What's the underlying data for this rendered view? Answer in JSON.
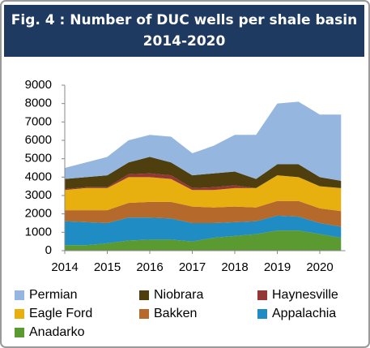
{
  "chart_data": {
    "type": "area",
    "stacked": true,
    "title": "Fig. 4 : Number of DUC wells per shale basin 2014-2020",
    "x": [
      2014,
      2014.5,
      2015,
      2015.5,
      2016,
      2016.5,
      2017,
      2017.5,
      2018,
      2018.5,
      2019,
      2019.5,
      2020,
      2020.5
    ],
    "xlim": [
      2014,
      2020.6
    ],
    "xticks": [
      2014,
      2015,
      2016,
      2017,
      2018,
      2019,
      2020
    ],
    "ylim": [
      0,
      9000
    ],
    "yticks": [
      0,
      1000,
      2000,
      3000,
      4000,
      5000,
      6000,
      7000,
      8000,
      9000
    ],
    "grid": false,
    "series": [
      {
        "name": "Permian",
        "color": "#95b6de",
        "values": [
          600,
          800,
          1000,
          1200,
          1200,
          1400,
          1200,
          1500,
          2000,
          2400,
          3300,
          3400,
          3400,
          3600
        ]
      },
      {
        "name": "Niobrara",
        "color": "#4f3f0e",
        "values": [
          550,
          550,
          650,
          650,
          900,
          700,
          700,
          750,
          750,
          500,
          600,
          700,
          500,
          400
        ]
      },
      {
        "name": "Haynesville",
        "color": "#953735",
        "values": [
          50,
          50,
          50,
          150,
          200,
          200,
          100,
          150,
          150,
          0,
          0,
          0,
          0,
          0
        ]
      },
      {
        "name": "Eagle Ford",
        "color": "#e8b00f",
        "values": [
          1100,
          1200,
          1200,
          1400,
          1350,
          1250,
          900,
          950,
          1000,
          1050,
          1400,
          1300,
          1200,
          1250
        ]
      },
      {
        "name": "Bakken",
        "color": "#b5692a",
        "values": [
          600,
          650,
          700,
          800,
          850,
          900,
          900,
          850,
          850,
          750,
          800,
          850,
          800,
          850
        ]
      },
      {
        "name": "Appalachia",
        "color": "#1f8cc4",
        "values": [
          1300,
          1250,
          1100,
          1250,
          1200,
          1150,
          1000,
          800,
          750,
          700,
          800,
          750,
          600,
          600
        ]
      },
      {
        "name": "Anadarko",
        "color": "#5b9a30",
        "values": [
          300,
          300,
          400,
          550,
          600,
          600,
          500,
          700,
          800,
          900,
          1100,
          1100,
          900,
          700
        ]
      }
    ]
  }
}
